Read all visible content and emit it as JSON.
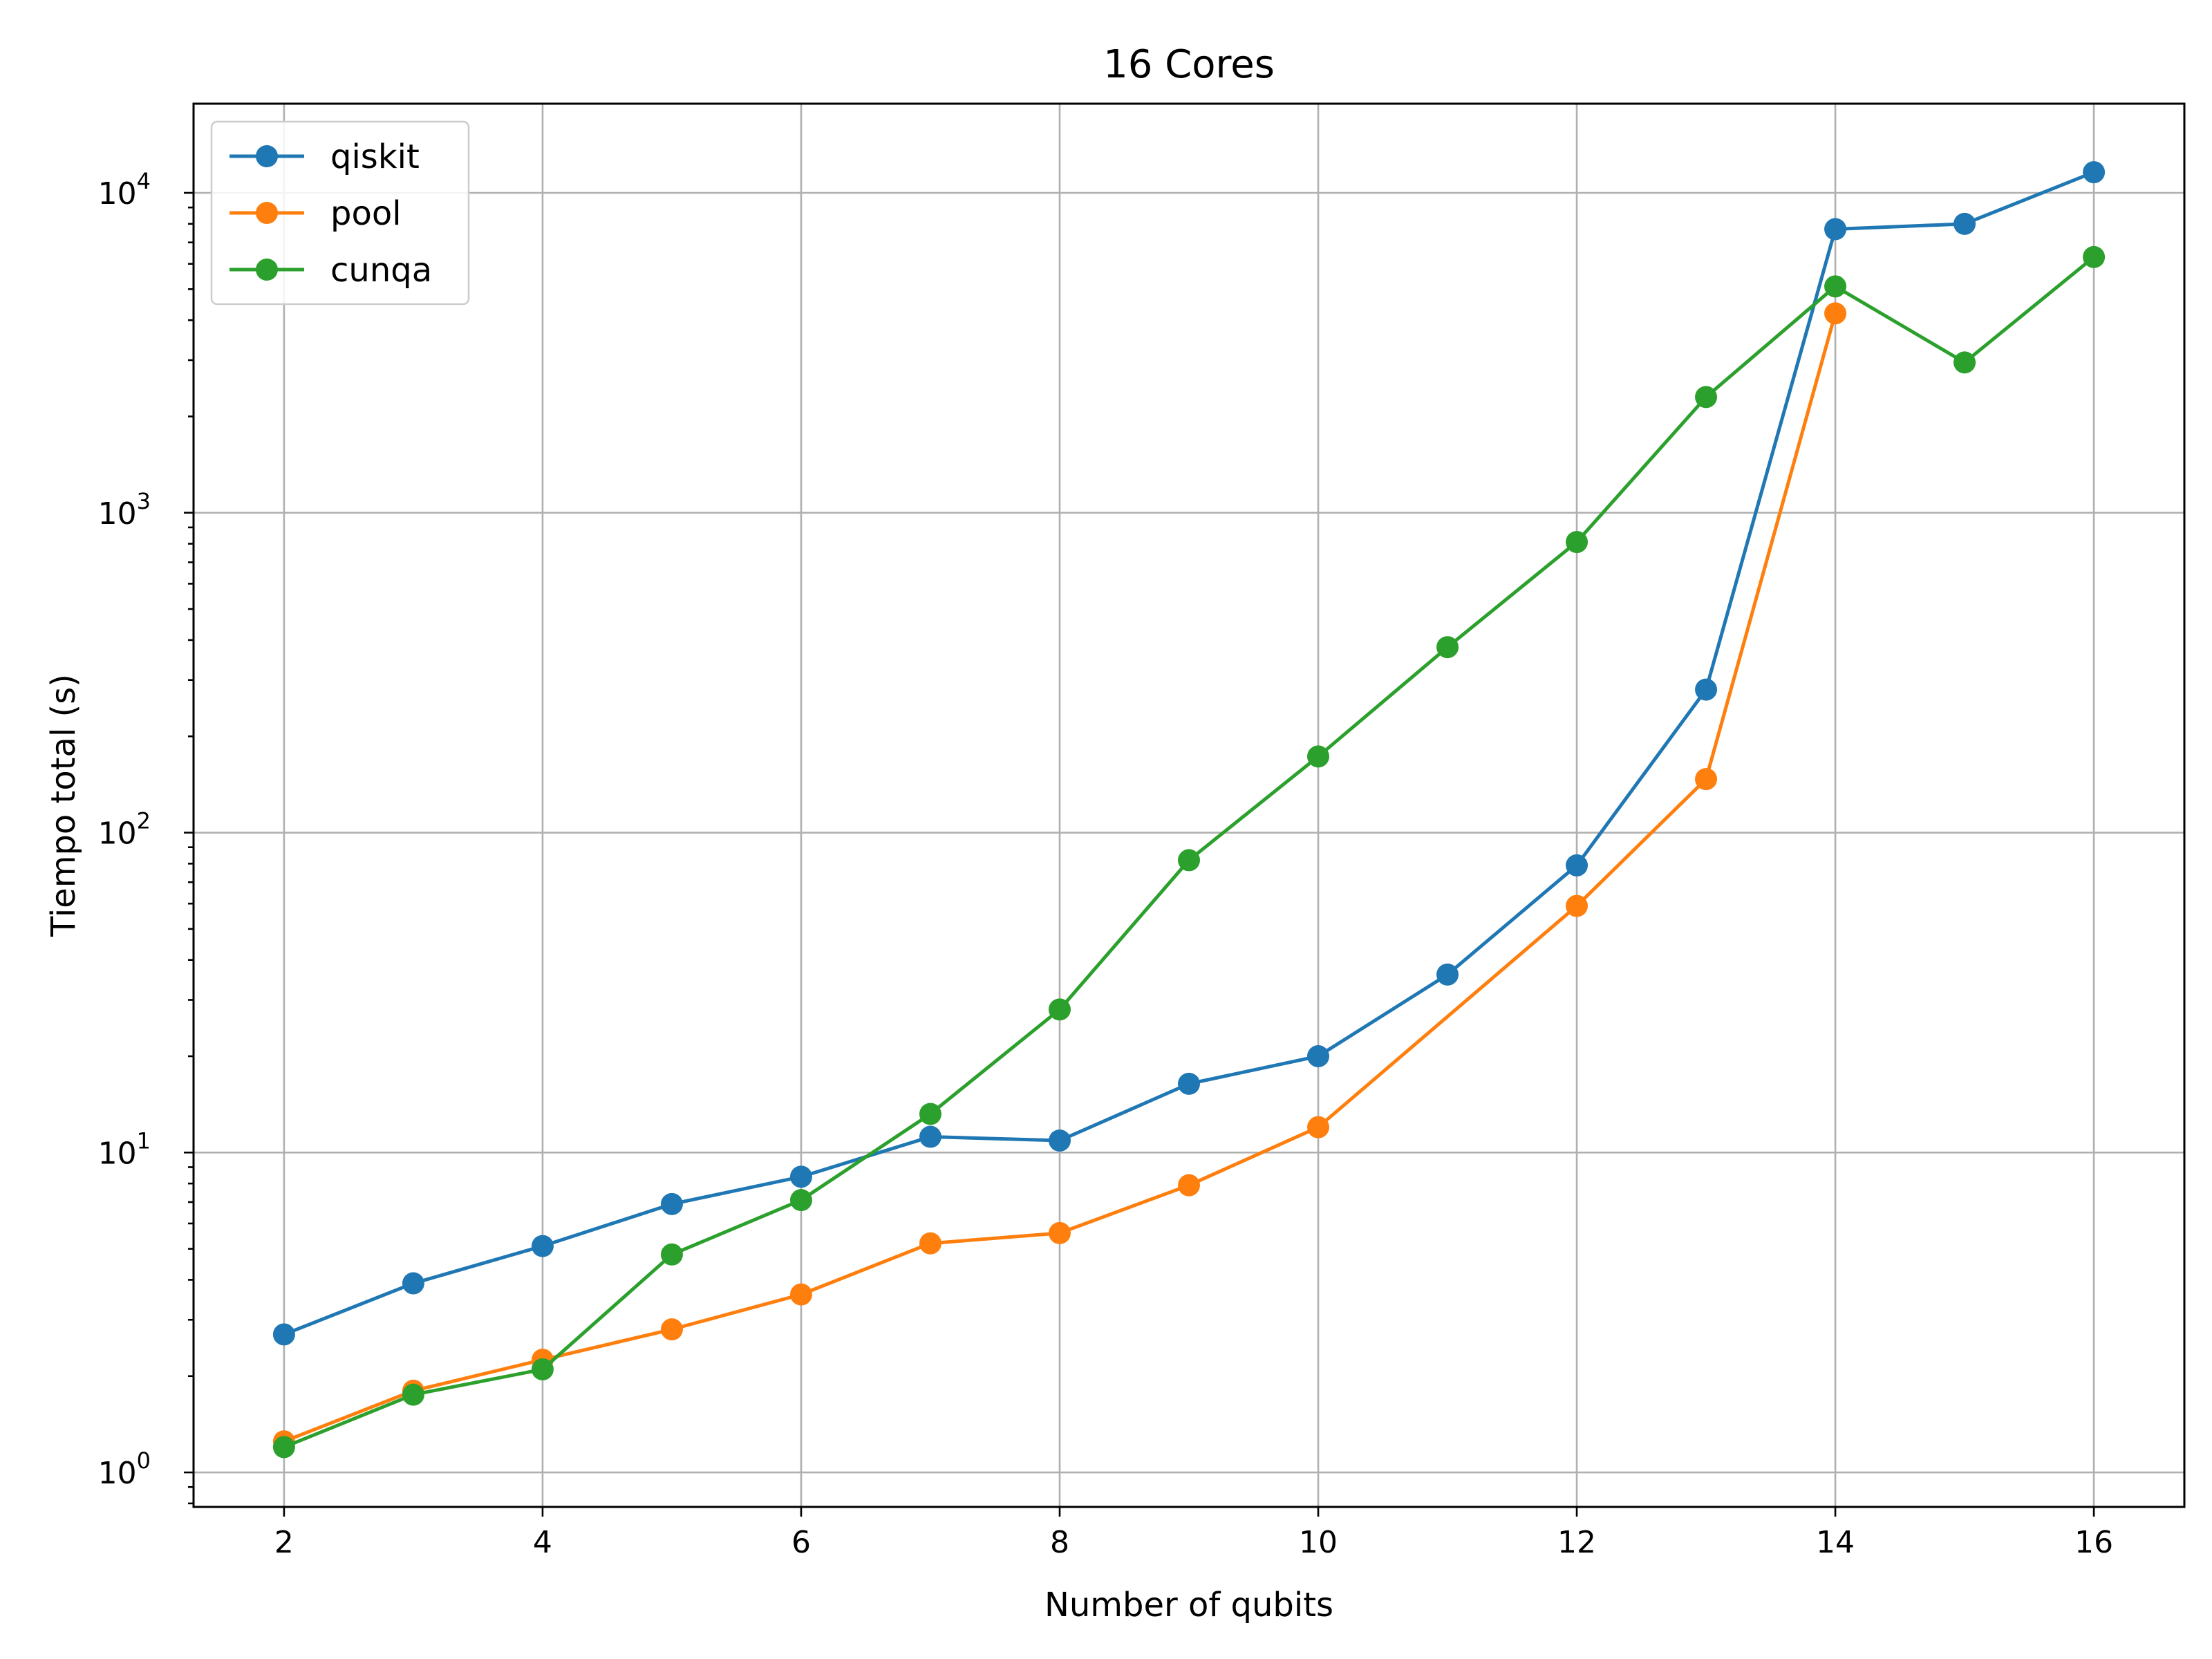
{
  "chart_data": {
    "type": "line",
    "title": "16 Cores",
    "xlabel": "Number of qubits",
    "ylabel": "Tiempo total (s)",
    "yscale": "log",
    "xlim": [
      1.3,
      16.7
    ],
    "ylim": [
      0.78,
      19000
    ],
    "x_ticks": [
      2,
      4,
      6,
      8,
      10,
      12,
      14,
      16
    ],
    "y_ticks": [
      {
        "value": 1,
        "base": "10",
        "exp": "0"
      },
      {
        "value": 10,
        "base": "10",
        "exp": "1"
      },
      {
        "value": 100,
        "base": "10",
        "exp": "2"
      },
      {
        "value": 1000,
        "base": "10",
        "exp": "3"
      },
      {
        "value": 10000,
        "base": "10",
        "exp": "4"
      }
    ],
    "grid": true,
    "legend_position": "upper-left",
    "marker": "circle",
    "series": [
      {
        "name": "qiskit",
        "color": "#1f77b4",
        "x": [
          2,
          3,
          4,
          5,
          6,
          7,
          8,
          9,
          10,
          11,
          12,
          13,
          14,
          15,
          16
        ],
        "y": [
          2.7,
          3.9,
          5.1,
          6.9,
          8.4,
          11.2,
          10.9,
          16.4,
          20.0,
          36.0,
          79.0,
          280.0,
          7700.0,
          8000.0,
          11600.0
        ]
      },
      {
        "name": "pool",
        "color": "#ff7f0e",
        "x": [
          2,
          3,
          4,
          5,
          6,
          7,
          8,
          9,
          10,
          12,
          13,
          14
        ],
        "y": [
          1.25,
          1.8,
          2.25,
          2.8,
          3.6,
          5.2,
          5.6,
          7.9,
          12.0,
          59.0,
          147.0,
          4200.0
        ]
      },
      {
        "name": "cunqa",
        "color": "#2ca02c",
        "x": [
          2,
          3,
          4,
          5,
          6,
          7,
          8,
          9,
          10,
          11,
          12,
          13,
          14,
          15,
          16
        ],
        "y": [
          1.2,
          1.75,
          2.1,
          4.8,
          7.1,
          13.2,
          28.0,
          82.0,
          173.0,
          380.0,
          810.0,
          2300.0,
          5100.0,
          2950.0,
          6300.0
        ]
      }
    ]
  }
}
